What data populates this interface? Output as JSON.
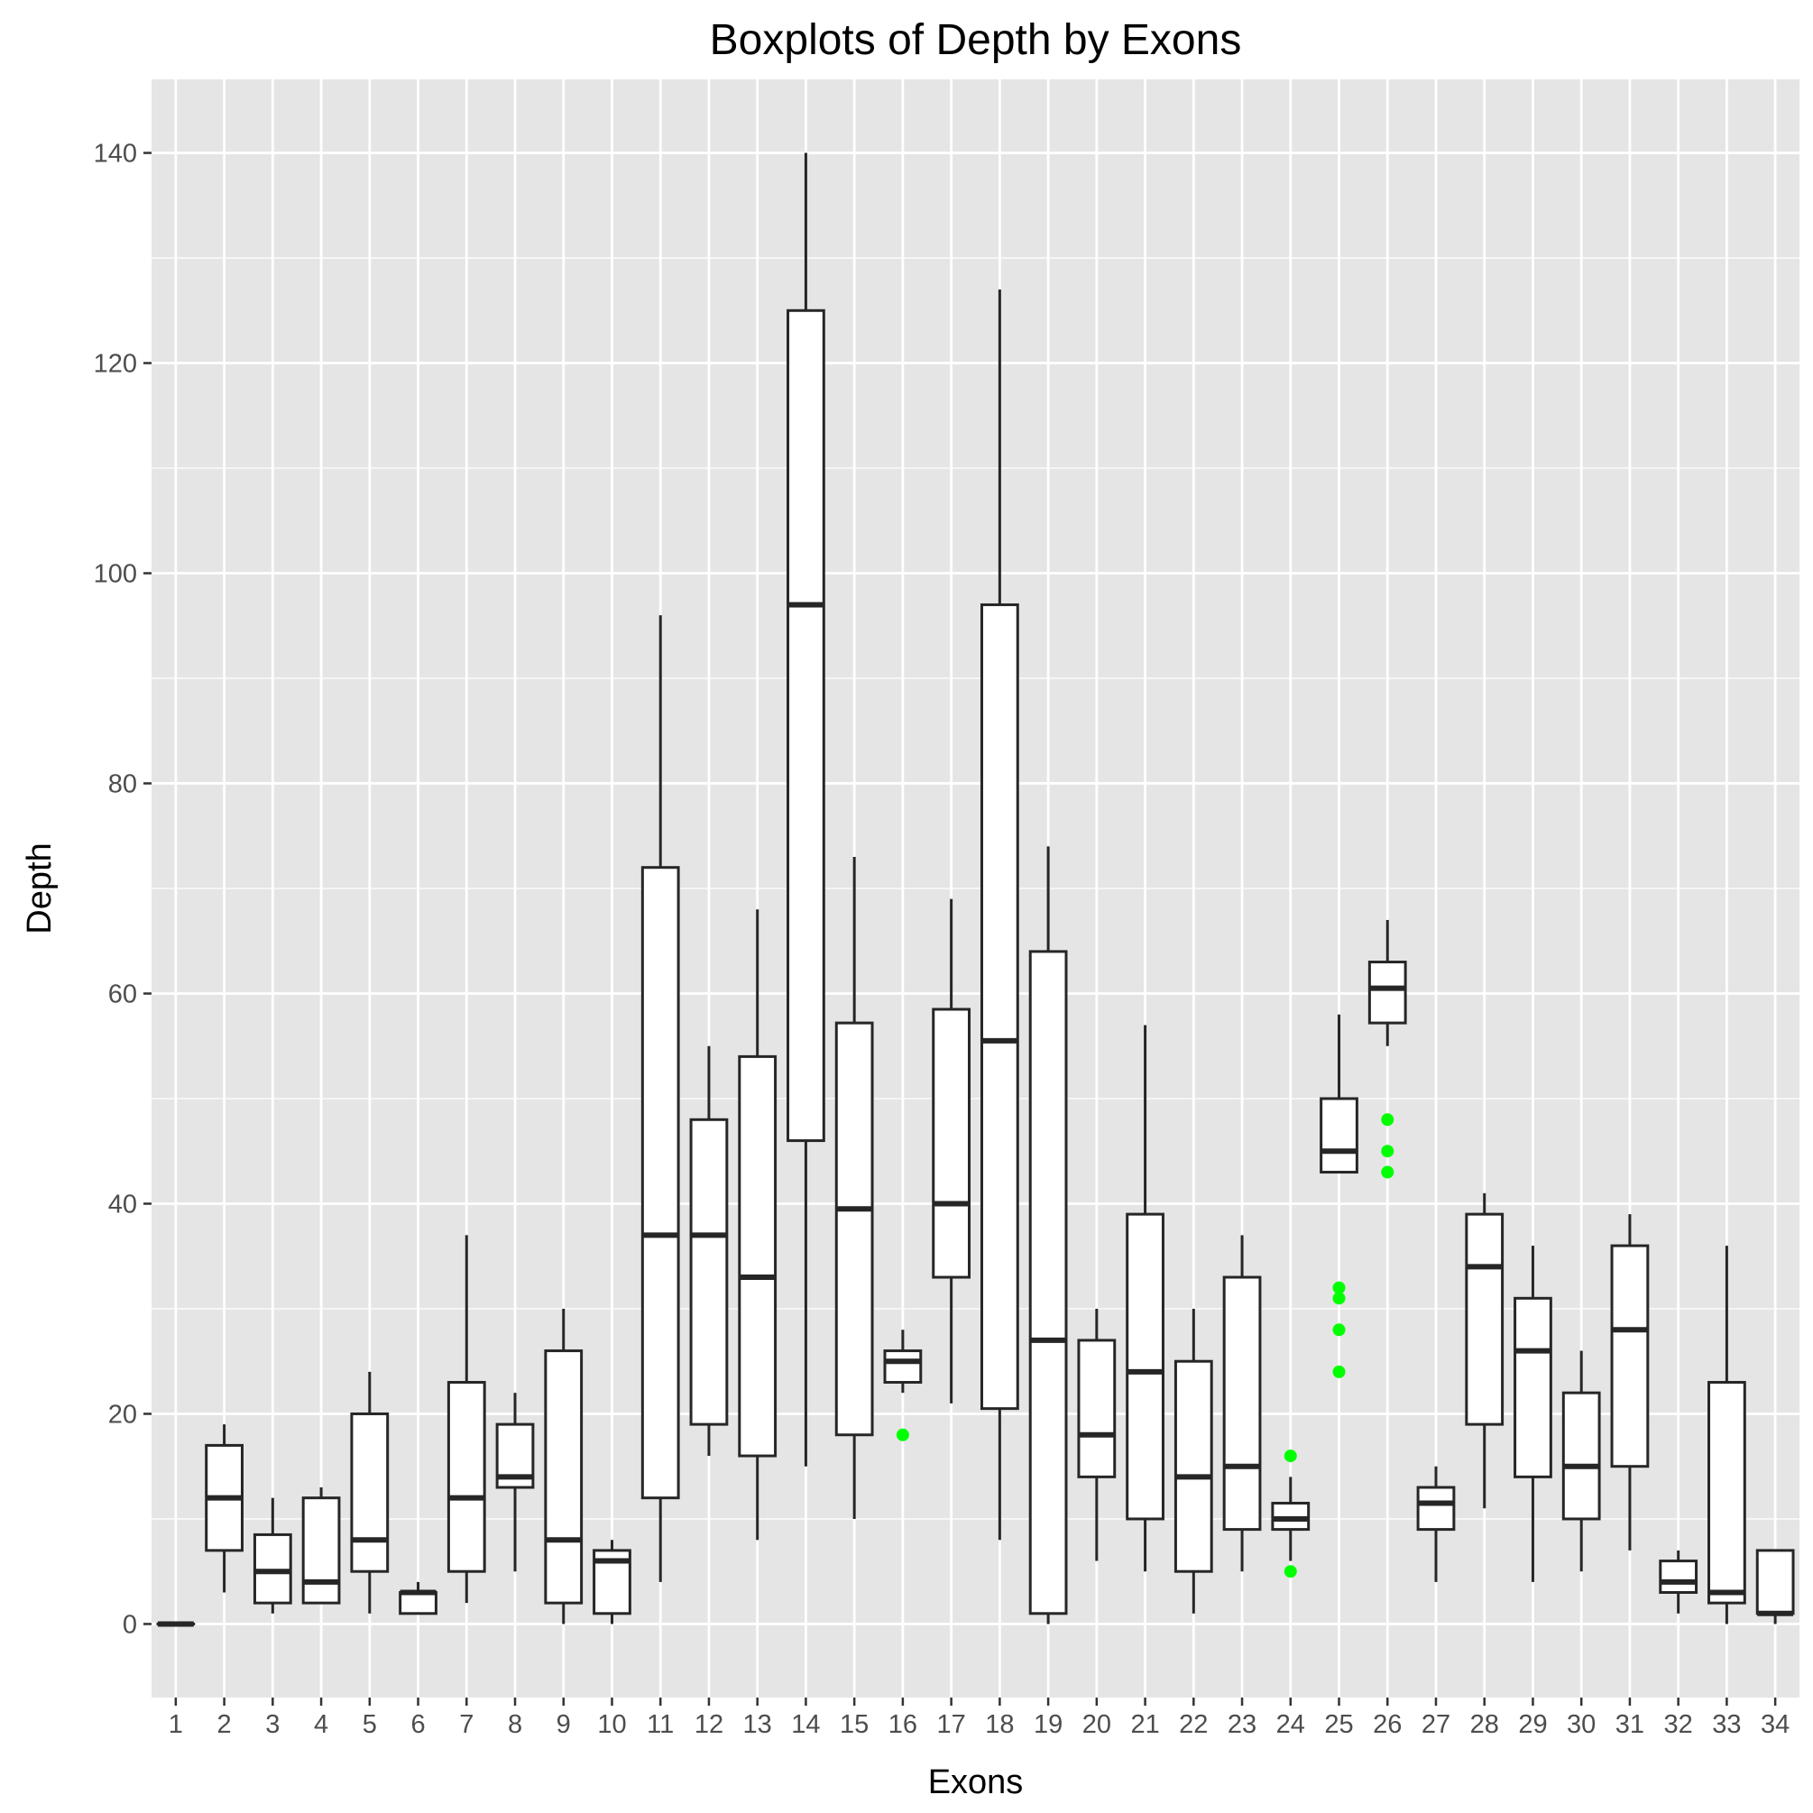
{
  "chart_data": {
    "type": "boxplot",
    "title": "Boxplots of Depth by Exons",
    "xlabel": "Exons",
    "ylabel": "Depth",
    "ylim": [
      -7,
      147
    ],
    "yticks": [
      0,
      20,
      40,
      60,
      80,
      100,
      120,
      140
    ],
    "grid": true,
    "colors": {
      "panel_background": "#e5e5e5",
      "grid_line": "#ffffff",
      "box_fill": "#ffffff",
      "box_stroke": "#262626",
      "outlier": "#00ff00",
      "tick_label": "#4d4d4d"
    },
    "categories": [
      "1",
      "2",
      "3",
      "4",
      "5",
      "6",
      "7",
      "8",
      "9",
      "10",
      "11",
      "12",
      "13",
      "14",
      "15",
      "16",
      "17",
      "18",
      "19",
      "20",
      "21",
      "22",
      "23",
      "24",
      "25",
      "26",
      "27",
      "28",
      "29",
      "30",
      "31",
      "32",
      "33",
      "34"
    ],
    "boxes": [
      {
        "category": "1",
        "whisker_low": 0,
        "q1": 0,
        "median": 0,
        "q3": 0,
        "whisker_high": 0,
        "outliers": []
      },
      {
        "category": "2",
        "whisker_low": 3,
        "q1": 7,
        "median": 12,
        "q3": 17,
        "whisker_high": 19,
        "outliers": []
      },
      {
        "category": "3",
        "whisker_low": 1,
        "q1": 2,
        "median": 5,
        "q3": 8.5,
        "whisker_high": 12,
        "outliers": []
      },
      {
        "category": "4",
        "whisker_low": 2,
        "q1": 2,
        "median": 4,
        "q3": 12,
        "whisker_high": 13,
        "outliers": []
      },
      {
        "category": "5",
        "whisker_low": 1,
        "q1": 5,
        "median": 8,
        "q3": 20,
        "whisker_high": 24,
        "outliers": []
      },
      {
        "category": "6",
        "whisker_low": 1,
        "q1": 1,
        "median": 3,
        "q3": 3,
        "whisker_high": 4,
        "outliers": []
      },
      {
        "category": "7",
        "whisker_low": 2,
        "q1": 5,
        "median": 12,
        "q3": 23,
        "whisker_high": 37,
        "outliers": []
      },
      {
        "category": "8",
        "whisker_low": 5,
        "q1": 13,
        "median": 14,
        "q3": 19,
        "whisker_high": 22,
        "outliers": []
      },
      {
        "category": "9",
        "whisker_low": 0,
        "q1": 2,
        "median": 8,
        "q3": 26,
        "whisker_high": 30,
        "outliers": []
      },
      {
        "category": "10",
        "whisker_low": 0,
        "q1": 1,
        "median": 6,
        "q3": 7,
        "whisker_high": 8,
        "outliers": []
      },
      {
        "category": "11",
        "whisker_low": 4,
        "q1": 12,
        "median": 37,
        "q3": 72,
        "whisker_high": 96,
        "outliers": []
      },
      {
        "category": "12",
        "whisker_low": 16,
        "q1": 19,
        "median": 37,
        "q3": 48,
        "whisker_high": 55,
        "outliers": []
      },
      {
        "category": "13",
        "whisker_low": 8,
        "q1": 16,
        "median": 33,
        "q3": 54,
        "whisker_high": 68,
        "outliers": []
      },
      {
        "category": "14",
        "whisker_low": 15,
        "q1": 46,
        "median": 97,
        "q3": 125,
        "whisker_high": 140,
        "outliers": []
      },
      {
        "category": "15",
        "whisker_low": 10,
        "q1": 18,
        "median": 39.5,
        "q3": 57.2,
        "whisker_high": 73,
        "outliers": []
      },
      {
        "category": "16",
        "whisker_low": 22,
        "q1": 23,
        "median": 25,
        "q3": 26,
        "whisker_high": 28,
        "outliers": [
          18
        ]
      },
      {
        "category": "17",
        "whisker_low": 21,
        "q1": 33,
        "median": 40,
        "q3": 58.5,
        "whisker_high": 69,
        "outliers": []
      },
      {
        "category": "18",
        "whisker_low": 8,
        "q1": 20.5,
        "median": 55.5,
        "q3": 97,
        "whisker_high": 127,
        "outliers": []
      },
      {
        "category": "19",
        "whisker_low": 0,
        "q1": 1,
        "median": 27,
        "q3": 64,
        "whisker_high": 74,
        "outliers": []
      },
      {
        "category": "20",
        "whisker_low": 6,
        "q1": 14,
        "median": 18,
        "q3": 27,
        "whisker_high": 30,
        "outliers": []
      },
      {
        "category": "21",
        "whisker_low": 5,
        "q1": 10,
        "median": 24,
        "q3": 39,
        "whisker_high": 57,
        "outliers": []
      },
      {
        "category": "22",
        "whisker_low": 1,
        "q1": 5,
        "median": 14,
        "q3": 25,
        "whisker_high": 30,
        "outliers": []
      },
      {
        "category": "23",
        "whisker_low": 5,
        "q1": 9,
        "median": 15,
        "q3": 33,
        "whisker_high": 37,
        "outliers": []
      },
      {
        "category": "24",
        "whisker_low": 6,
        "q1": 9,
        "median": 10,
        "q3": 11.5,
        "whisker_high": 14,
        "outliers": [
          16,
          5
        ]
      },
      {
        "category": "25",
        "whisker_low": 43,
        "q1": 43,
        "median": 45,
        "q3": 50,
        "whisker_high": 58,
        "outliers": [
          32,
          31,
          28,
          24
        ]
      },
      {
        "category": "26",
        "whisker_low": 55,
        "q1": 57.2,
        "median": 60.5,
        "q3": 63,
        "whisker_high": 67,
        "outliers": [
          48,
          45,
          43
        ]
      },
      {
        "category": "27",
        "whisker_low": 4,
        "q1": 9,
        "median": 11.5,
        "q3": 13,
        "whisker_high": 15,
        "outliers": []
      },
      {
        "category": "28",
        "whisker_low": 11,
        "q1": 19,
        "median": 34,
        "q3": 39,
        "whisker_high": 41,
        "outliers": []
      },
      {
        "category": "29",
        "whisker_low": 4,
        "q1": 14,
        "median": 26,
        "q3": 31,
        "whisker_high": 36,
        "outliers": []
      },
      {
        "category": "30",
        "whisker_low": 5,
        "q1": 10,
        "median": 15,
        "q3": 22,
        "whisker_high": 26,
        "outliers": []
      },
      {
        "category": "31",
        "whisker_low": 7,
        "q1": 15,
        "median": 28,
        "q3": 36,
        "whisker_high": 39,
        "outliers": []
      },
      {
        "category": "32",
        "whisker_low": 1,
        "q1": 3,
        "median": 4,
        "q3": 6,
        "whisker_high": 7,
        "outliers": []
      },
      {
        "category": "33",
        "whisker_low": 0,
        "q1": 2,
        "median": 3,
        "q3": 23,
        "whisker_high": 36,
        "outliers": []
      },
      {
        "category": "34",
        "whisker_low": 0,
        "q1": 1,
        "median": 1,
        "q3": 7,
        "whisker_high": 7,
        "outliers": []
      }
    ]
  }
}
